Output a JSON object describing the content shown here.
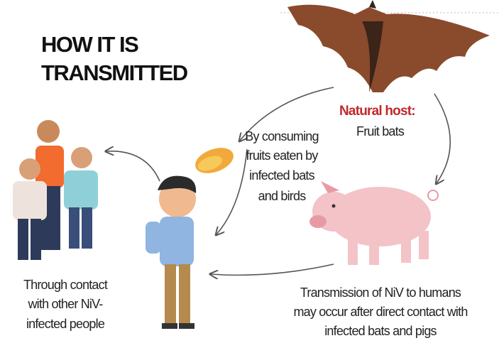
{
  "title": [
    "HOW IT IS",
    "TRANSMITTED"
  ],
  "natural_host": {
    "label": "Natural host:",
    "text": "Fruit bats"
  },
  "fruit_note": [
    "By consuming",
    "fruits eaten by",
    "infected bats",
    "and birds"
  ],
  "pig_note": [
    "Transmission of NiV to humans",
    "may occur after direct contact with",
    "infected bats and pigs"
  ],
  "people_note": [
    "Through contact",
    "with other NiV-",
    "infected people"
  ]
}
